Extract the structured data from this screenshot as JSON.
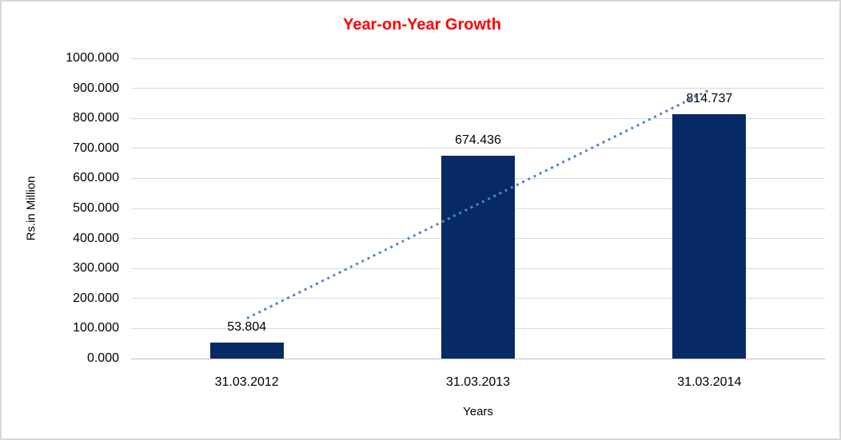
{
  "window": {
    "background": "#FFFFFF",
    "frame_border_color": "#D6D6D6"
  },
  "chart_data": {
    "type": "bar",
    "title": "Year-on-Year Growth",
    "title_color": "#FF0000",
    "categories": [
      "31.03.2012",
      "31.03.2013",
      "31.03.2014"
    ],
    "values": [
      53.804,
      674.436,
      814.737
    ],
    "value_labels": [
      "53.804",
      "674.436",
      "814.737"
    ],
    "xlabel": "Years",
    "ylabel": "Rs.in Million",
    "ylim": [
      0,
      1000
    ],
    "ytick_step": 100,
    "ytick_labels": [
      "0.000",
      "100.000",
      "200.000",
      "300.000",
      "400.000",
      "500.000",
      "600.000",
      "700.000",
      "800.000",
      "900.000",
      "1000.000"
    ],
    "grid": true,
    "legend": "none",
    "bar_color": "#082A64",
    "gridline_color": "#D9D9D9",
    "axis_line_color": "#BFBFBF",
    "text_color": "#000000",
    "trendline": {
      "type": "linear",
      "style": "dotted",
      "color": "#4F86C6"
    }
  }
}
